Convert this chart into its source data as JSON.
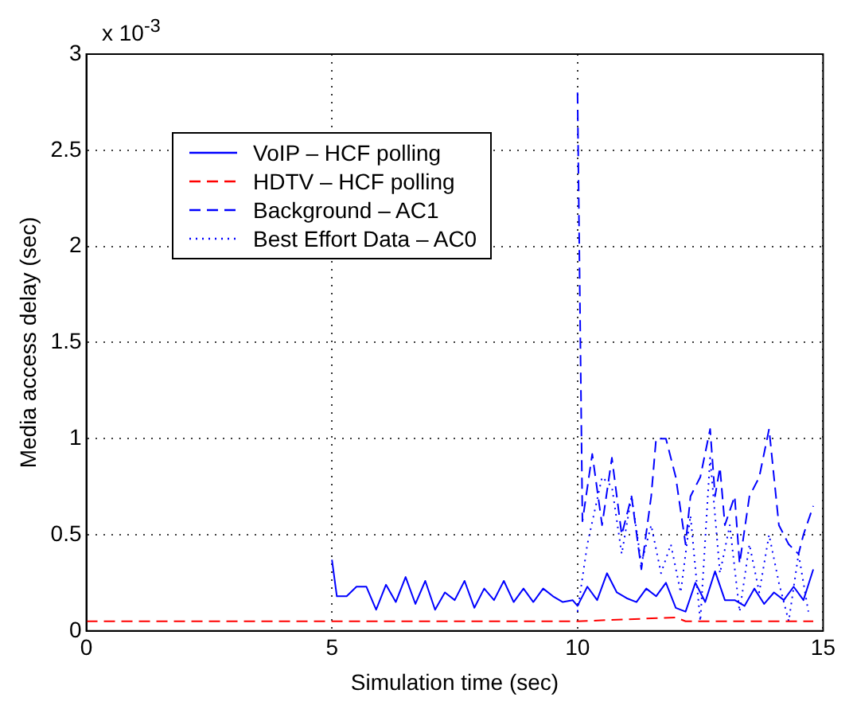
{
  "chart_data": {
    "type": "line",
    "xlabel": "Simulation time (sec)",
    "ylabel": "Media access delay (sec)",
    "annotations": [
      "x 10$^{-3}$"
    ],
    "xlim": [
      0,
      15
    ],
    "xticks": [
      0,
      5,
      10,
      15
    ],
    "ylim": [
      0,
      3
    ],
    "yticks": [
      0,
      0.5,
      1,
      1.5,
      2,
      2.5,
      3
    ],
    "grid": true,
    "legend": "top left",
    "marker": "none",
    "series": [
      {
        "name": "VoIP – HCF polling",
        "color": "#0000ff",
        "line_style": "solid",
        "x": [
          5.0,
          5.1,
          5.3,
          5.5,
          5.7,
          5.9,
          6.1,
          6.3,
          6.5,
          6.7,
          6.9,
          7.1,
          7.3,
          7.5,
          7.7,
          7.9,
          8.1,
          8.3,
          8.5,
          8.7,
          8.9,
          9.1,
          9.3,
          9.5,
          9.7,
          9.9,
          10.0,
          10.2,
          10.4,
          10.6,
          10.8,
          11.0,
          11.2,
          11.4,
          11.6,
          11.8,
          12.0,
          12.2,
          12.4,
          12.6,
          12.8,
          13.0,
          13.2,
          13.4,
          13.6,
          13.8,
          14.0,
          14.2,
          14.4,
          14.6,
          14.8
        ],
        "values": [
          0.37,
          0.18,
          0.18,
          0.23,
          0.23,
          0.11,
          0.24,
          0.15,
          0.28,
          0.14,
          0.26,
          0.11,
          0.2,
          0.16,
          0.26,
          0.12,
          0.22,
          0.16,
          0.26,
          0.15,
          0.22,
          0.15,
          0.22,
          0.18,
          0.15,
          0.16,
          0.13,
          0.23,
          0.16,
          0.3,
          0.2,
          0.17,
          0.15,
          0.22,
          0.18,
          0.25,
          0.12,
          0.1,
          0.25,
          0.15,
          0.31,
          0.16,
          0.16,
          0.13,
          0.22,
          0.14,
          0.2,
          0.16,
          0.23,
          0.16,
          0.32
        ]
      },
      {
        "name": "HDTV – HCF polling",
        "color": "#ff0000",
        "line_style": "dashed",
        "x": [
          0,
          5,
          10,
          12,
          12.2,
          14.8
        ],
        "values": [
          0.05,
          0.05,
          0.05,
          0.07,
          0.05,
          0.05
        ]
      },
      {
        "name": "Background – AC1",
        "color": "#0000ff",
        "line_style": "dashed",
        "x": [
          10.0,
          10.1,
          10.3,
          10.5,
          10.7,
          10.9,
          11.1,
          11.3,
          11.5,
          11.6,
          11.8,
          12.0,
          12.2,
          12.3,
          12.5,
          12.7,
          12.8,
          12.9,
          13.0,
          13.2,
          13.3,
          13.5,
          13.7,
          13.9,
          14.1,
          14.3,
          14.5,
          14.6,
          14.8
        ],
        "values": [
          2.8,
          0.57,
          0.92,
          0.55,
          0.9,
          0.5,
          0.7,
          0.32,
          0.7,
          1.0,
          1.0,
          0.8,
          0.45,
          0.7,
          0.8,
          1.05,
          0.7,
          0.85,
          0.55,
          0.7,
          0.35,
          0.7,
          0.8,
          1.05,
          0.55,
          0.45,
          0.4,
          0.5,
          0.65
        ]
      },
      {
        "name": "Best Effort Data – AC0",
        "color": "#0000ff",
        "line_style": "dotted",
        "x": [
          10.0,
          10.2,
          10.5,
          10.7,
          10.9,
          11.1,
          11.3,
          11.5,
          11.7,
          11.9,
          12.1,
          12.3,
          12.5,
          12.7,
          12.9,
          13.1,
          13.3,
          13.5,
          13.7,
          13.9,
          14.1,
          14.3,
          14.5,
          14.7
        ],
        "values": [
          0.1,
          0.45,
          0.8,
          0.75,
          0.4,
          0.7,
          0.35,
          0.55,
          0.3,
          0.45,
          0.2,
          0.6,
          0.05,
          0.9,
          0.3,
          0.55,
          0.1,
          0.45,
          0.2,
          0.5,
          0.25,
          0.05,
          0.4,
          0.1
        ]
      }
    ]
  }
}
